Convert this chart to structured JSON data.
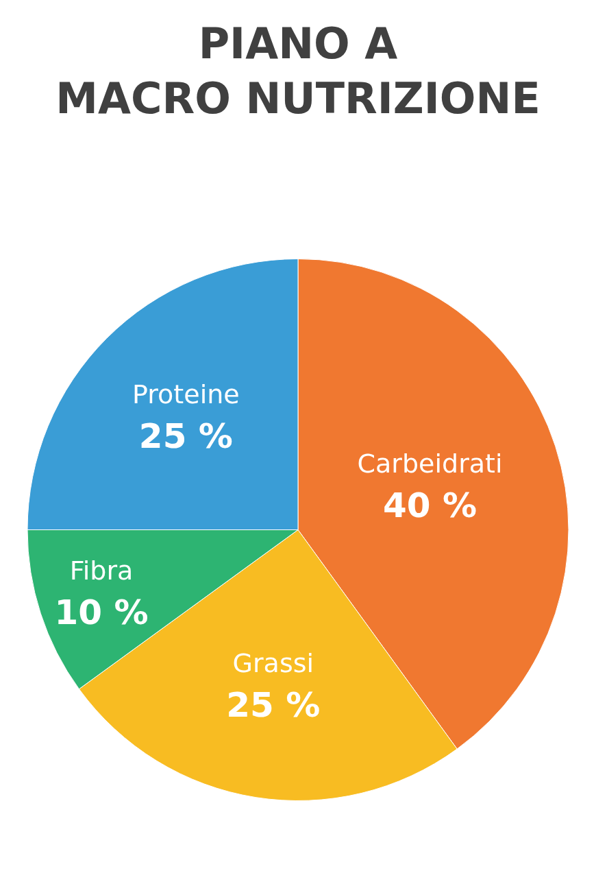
{
  "chart_data": {
    "type": "pie",
    "title": "PIANO A\nMACRO NUTRIZIONE",
    "categories": [
      "Carbeidrati",
      "Grassi",
      "Fibra",
      "Proteine"
    ],
    "values": [
      40,
      25,
      10,
      25
    ],
    "value_labels": [
      "40 %",
      "25 %",
      "10 %",
      "25 %"
    ],
    "colors": [
      "#f07830",
      "#f8bc22",
      "#2db472",
      "#3a9dd6"
    ],
    "legend": false
  }
}
